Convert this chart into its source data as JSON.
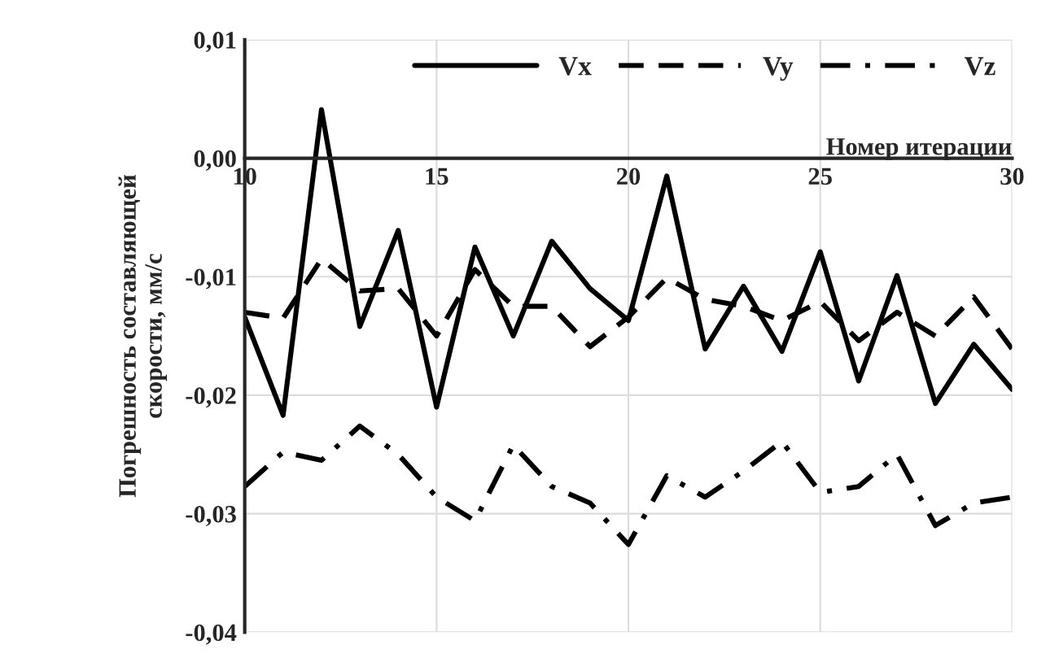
{
  "chart_data": {
    "type": "line",
    "xlabel": "Номер итерации",
    "ylabel": "Погрешность составляющей\nскорости, мм/с",
    "x": [
      10,
      11,
      12,
      13,
      14,
      15,
      16,
      17,
      18,
      19,
      20,
      21,
      22,
      23,
      24,
      25,
      26,
      27,
      28,
      29,
      30
    ],
    "series": [
      {
        "name": "Vx",
        "color": "#000000",
        "line_style": "solid",
        "values": [
          -0.0134,
          -0.0217,
          0.0041,
          -0.0142,
          -0.0061,
          -0.021,
          -0.0075,
          -0.015,
          -0.007,
          -0.011,
          -0.0137,
          -0.0015,
          -0.0161,
          -0.0108,
          -0.0163,
          -0.0079,
          -0.0188,
          -0.0099,
          -0.0207,
          -0.0157,
          -0.0195
        ]
      },
      {
        "name": "Vy",
        "color": "#000000",
        "line_style": "dashed",
        "values": [
          -0.013,
          -0.0135,
          -0.0085,
          -0.0112,
          -0.011,
          -0.015,
          -0.0094,
          -0.0125,
          -0.0125,
          -0.0159,
          -0.0134,
          -0.0101,
          -0.0119,
          -0.0125,
          -0.0137,
          -0.0121,
          -0.0154,
          -0.013,
          -0.015,
          -0.0117,
          -0.0161
        ]
      },
      {
        "name": "Vz",
        "color": "#000000",
        "line_style": "dashdot",
        "values": [
          -0.0277,
          -0.0248,
          -0.0255,
          -0.0226,
          -0.025,
          -0.0286,
          -0.0306,
          -0.0242,
          -0.0277,
          -0.0291,
          -0.0326,
          -0.0268,
          -0.0286,
          -0.0264,
          -0.0239,
          -0.0282,
          -0.0277,
          -0.025,
          -0.031,
          -0.0291,
          -0.0286
        ]
      }
    ],
    "xlim": [
      10,
      30
    ],
    "xticks": [
      10,
      15,
      20,
      25,
      30
    ],
    "ylim": [
      -0.04,
      0.01
    ],
    "yticks": [
      {
        "value": -0.04,
        "label": "-0,04"
      },
      {
        "value": -0.03,
        "label": "-0,03"
      },
      {
        "value": -0.02,
        "label": "-0,02"
      },
      {
        "value": -0.01,
        "label": "-0,01"
      },
      {
        "value": 0,
        "label": "0,00"
      },
      {
        "value": 0.01,
        "label": "0,01"
      }
    ],
    "grid": true,
    "legend": "top right",
    "marker": "none"
  }
}
